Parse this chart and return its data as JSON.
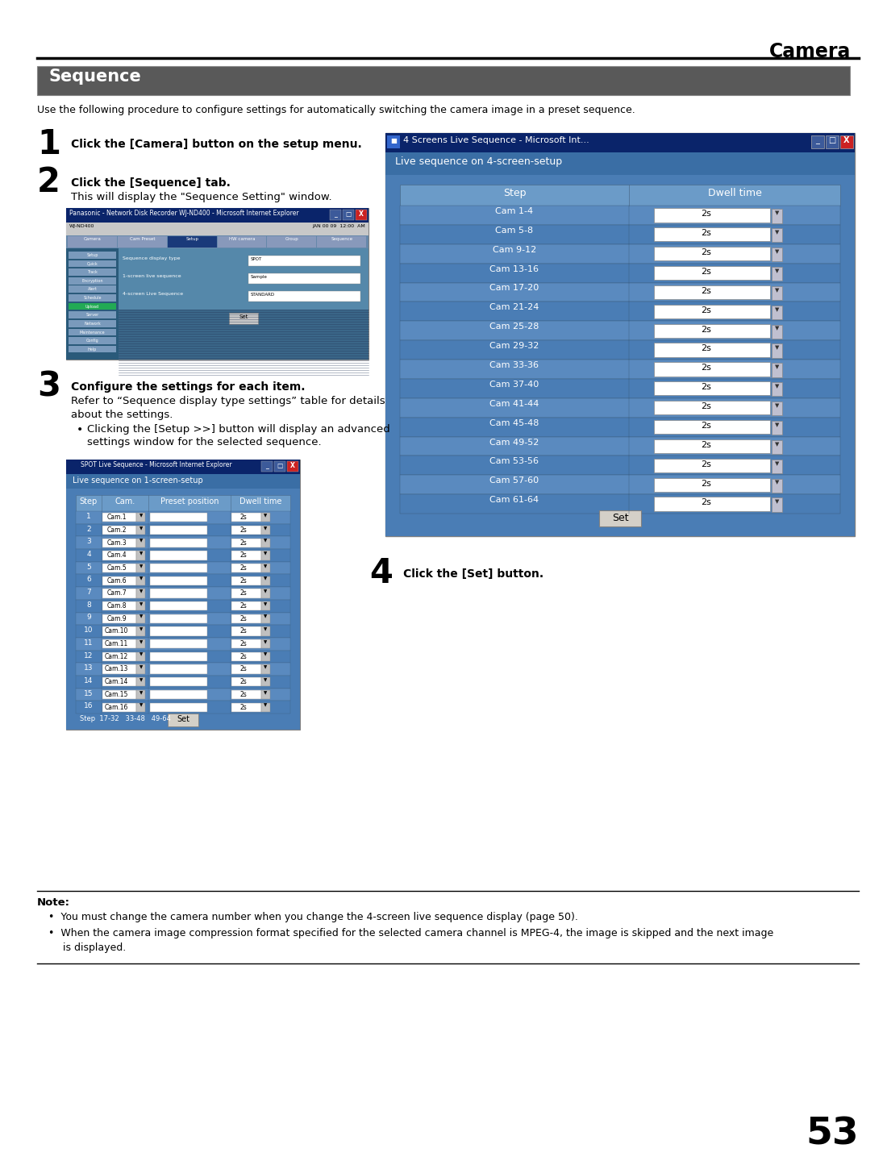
{
  "title_right": "Camera",
  "section_title": "Sequence",
  "section_bg": "#595959",
  "section_text_color": "#ffffff",
  "intro_text": "Use the following procedure to configure settings for automatically switching the camera image in a preset sequence.",
  "step1_num": "1",
  "step1_bold": "Click the [Camera] button on the setup menu.",
  "step2_num": "2",
  "step2_bold": "Click the [Sequence] tab.",
  "step2_text": "This will display the \"Sequence Setting\" window.",
  "step3_num": "3",
  "step3_bold": "Configure the settings for each item.",
  "step3_text1a": "Refer to “Sequence display type settings” table for details",
  "step3_text1b": "about the settings.",
  "step3_bullet": "Clicking the [Setup >>] button will display an advanced\n    settings window for the selected sequence.",
  "step4_num": "4",
  "step4_bold": "Click the [Set] button.",
  "note_title": "Note:",
  "note_bullet1": "You must change the camera number when you change the 4-screen live sequence display (page 50).",
  "note_bullet2": "When the camera image compression format specified for the selected camera channel is MPEG-4, the image is skipped and the next image\nis displayed.",
  "page_number": "53",
  "bg_color": "#ffffff",
  "win4_title": "4 Screens Live Sequence - Microsoft Int...",
  "win4_subtitle": "Live sequence on 4-screen-setup",
  "win4_header_step": "Step",
  "win4_header_dwell": "Dwell time",
  "win4_steps": [
    "Cam 1-4",
    "Cam 5-8",
    "Cam 9-12",
    "Cam 13-16",
    "Cam 17-20",
    "Cam 21-24",
    "Cam 25-28",
    "Cam 29-32",
    "Cam 33-36",
    "Cam 37-40",
    "Cam 41-44",
    "Cam 45-48",
    "Cam 49-52",
    "Cam 53-56",
    "Cam 57-60",
    "Cam 61-64"
  ],
  "win1_title": "SPOT Live Sequence - Microsoft Internet Explorer",
  "win1_subtitle": "Live sequence on 1-screen-setup",
  "win1_header": [
    "Step",
    "Cam.",
    "Preset position",
    "Dwell time"
  ],
  "win1_steps": [
    "Cam.1",
    "Cam.2",
    "Cam.3",
    "Cam.4",
    "Cam.5",
    "Cam.6",
    "Cam.7",
    "Cam.8",
    "Cam.9",
    "Cam.10",
    "Cam.11",
    "Cam.12",
    "Cam.13",
    "Cam.14",
    "Cam.15",
    "Cam.16"
  ],
  "seq_setting_title": "Panasonic - Network Disk Recorder WJ-ND400 - Microsoft Internet Explorer",
  "seq_tabs": [
    "Camera",
    "Cam Preset",
    "Setup",
    "HW camera",
    "Group",
    "Sequence"
  ],
  "seq_active_tab": "Setup",
  "seq_sidebar": [
    "Setup",
    "Quick",
    "Track",
    "Encryption",
    "Alert",
    "Schedule",
    "Upload",
    "Server",
    "Network",
    "Maintenance",
    "Config",
    "Help"
  ],
  "seq_active_sidebar": "Upload",
  "seq_fields": [
    {
      "label": "Sequence display type",
      "value": "SPOT"
    },
    {
      "label": "1-screen live sequence",
      "value": "Sample"
    },
    {
      "label": "4-screen Live Sequence",
      "value": "STANDARD"
    }
  ]
}
